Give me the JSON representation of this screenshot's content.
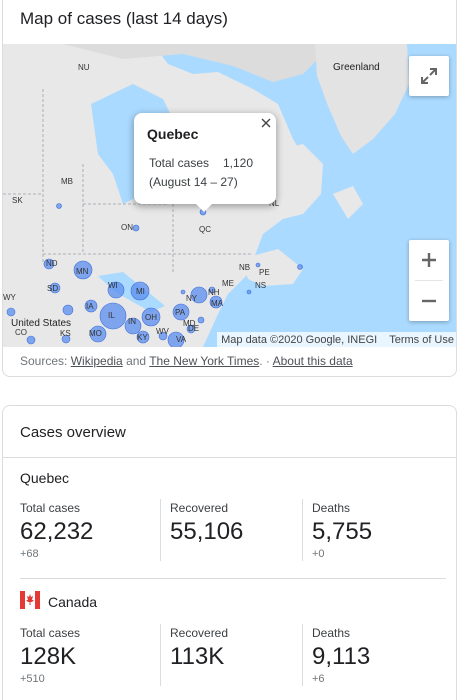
{
  "map_card": {
    "title": "Map of cases (last 14 days)",
    "map_labels": {
      "nu": "NU",
      "greenland": "Greenland",
      "mb": "MB",
      "sk": "SK",
      "on": "ON",
      "qc": "QC",
      "nl": "NL",
      "nb": "NB",
      "pe": "PE",
      "ns": "NS",
      "me": "ME",
      "nh": "NH",
      "ma": "MA",
      "ny": "NY",
      "pa": "PA",
      "mi": "MI",
      "wi": "WI",
      "mn": "MN",
      "nd": "ND",
      "sd": "SD",
      "ia": "IA",
      "il": "IL",
      "in": "IN",
      "oh": "OH",
      "mo": "MO",
      "ks": "KS",
      "ky": "KY",
      "wv": "WV",
      "va": "VA",
      "md": "MD",
      "de": "DE",
      "co": "CO",
      "wy": "WY",
      "united_states": "United States"
    },
    "info_window": {
      "title": "Quebec",
      "label": "Total cases",
      "value": "1,120",
      "dates": "(August 14 – 27)"
    },
    "attribution": "Map data ©2020 Google, INEGI",
    "terms": "Terms of Use",
    "sources_prefix": "Sources: ",
    "source_1": "Wikipedia",
    "sources_and": " and ",
    "source_2": "The New York Times",
    "sources_sep": ". · ",
    "about": "About this data",
    "icons": {
      "fullscreen": "fullscreen-icon",
      "zoom_in": "plus-icon",
      "zoom_out": "minus-icon",
      "close": "close-icon"
    },
    "colors": {
      "water": "#aadaff",
      "land": "#e8e8e8",
      "bubble": "#5b8def"
    }
  },
  "overview": {
    "title": "Cases overview",
    "quebec": {
      "name": "Quebec",
      "total_label": "Total cases",
      "total_value": "62,232",
      "total_delta": "+68",
      "recovered_label": "Recovered",
      "recovered_value": "55,106",
      "deaths_label": "Deaths",
      "deaths_value": "5,755",
      "deaths_delta": "+0"
    },
    "canada": {
      "name": "Canada",
      "total_label": "Total cases",
      "total_value": "128K",
      "total_delta": "+510",
      "recovered_label": "Recovered",
      "recovered_value": "113K",
      "deaths_label": "Deaths",
      "deaths_value": "9,113",
      "deaths_delta": "+6"
    }
  }
}
